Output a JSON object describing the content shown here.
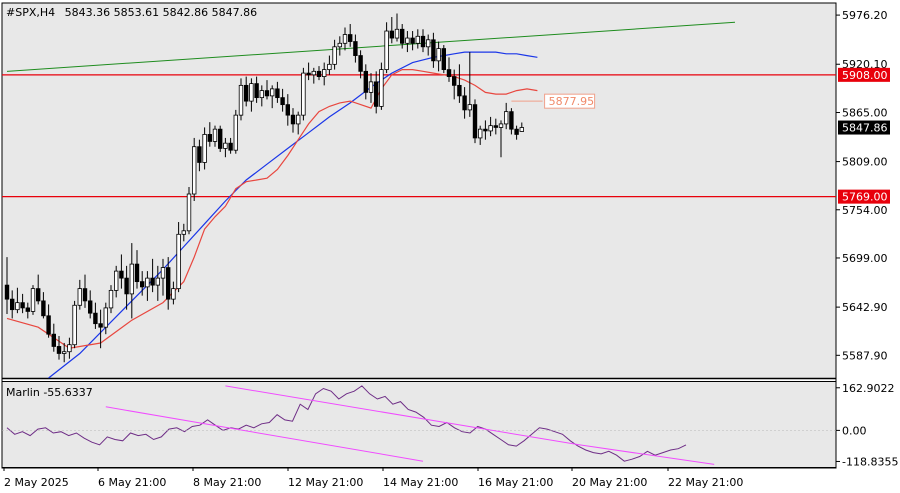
{
  "header": {
    "symbol": "#SPX,H4",
    "ohlc": "5843.36 5853.61 5842.86 5847.86"
  },
  "colors": {
    "background": "#ffffff",
    "plot_bg": "#e8e8e8",
    "candle": "#000000",
    "ma_fast": "#e8473f",
    "ma_slow": "#1a36e8",
    "trend_line": "#1e8c1e",
    "level_line": "#e8000b",
    "oscillator": "#6e2d86",
    "channel": "#f04cff",
    "price_label_bg": "#000000"
  },
  "chart_data": [
    {
      "type": "candlestick",
      "title": "#SPX,H4",
      "ohlc_last": {
        "open": 5843.36,
        "high": 5853.61,
        "low": 5842.86,
        "close": 5847.86
      },
      "y_ticks": [
        5976.2,
        5920.1,
        5865.0,
        5809.0,
        5754.0,
        5699.0,
        5642.9,
        5587.9
      ],
      "ylim": [
        5562,
        5990
      ],
      "x_ticks": [
        "2 May 2025",
        "6 May 21:00",
        "8 May 21:00",
        "12 May 21:00",
        "14 May 21:00",
        "16 May 21:00",
        "20 May 21:00",
        "22 May 21:00"
      ],
      "levels": [
        {
          "value": 5908.0,
          "label": "5908.00"
        },
        {
          "value": 5769.0,
          "label": "5769.00"
        }
      ],
      "target_label": {
        "value": 5877.95,
        "label": "5877.95"
      },
      "current_price": {
        "value": 5847.86,
        "label": "5847.86"
      },
      "candles": [
        [
          5668,
          5700,
          5635,
          5652
        ],
        [
          5652,
          5662,
          5630,
          5640
        ],
        [
          5640,
          5665,
          5636,
          5648
        ],
        [
          5648,
          5658,
          5636,
          5642
        ],
        [
          5642,
          5648,
          5630,
          5638
        ],
        [
          5638,
          5668,
          5634,
          5664
        ],
        [
          5664,
          5680,
          5646,
          5650
        ],
        [
          5650,
          5660,
          5630,
          5633
        ],
        [
          5633,
          5646,
          5608,
          5612
        ],
        [
          5612,
          5624,
          5592,
          5598
        ],
        [
          5598,
          5610,
          5583,
          5590
        ],
        [
          5590,
          5602,
          5580,
          5592
        ],
        [
          5592,
          5608,
          5584,
          5600
        ],
        [
          5600,
          5650,
          5596,
          5645
        ],
        [
          5645,
          5674,
          5640,
          5664
        ],
        [
          5664,
          5680,
          5642,
          5650
        ],
        [
          5650,
          5662,
          5630,
          5636
        ],
        [
          5636,
          5648,
          5618,
          5624
        ],
        [
          5624,
          5640,
          5596,
          5620
        ],
        [
          5620,
          5648,
          5612,
          5642
        ],
        [
          5642,
          5668,
          5636,
          5662
        ],
        [
          5662,
          5690,
          5654,
          5684
        ],
        [
          5684,
          5703,
          5664,
          5676
        ],
        [
          5676,
          5690,
          5640,
          5658
        ],
        [
          5658,
          5716,
          5630,
          5692
        ],
        [
          5692,
          5708,
          5664,
          5672
        ],
        [
          5672,
          5684,
          5656,
          5666
        ],
        [
          5666,
          5684,
          5650,
          5676
        ],
        [
          5676,
          5698,
          5660,
          5668
        ],
        [
          5668,
          5690,
          5650,
          5676
        ],
        [
          5676,
          5698,
          5656,
          5688
        ],
        [
          5688,
          5700,
          5640,
          5652
        ],
        [
          5652,
          5672,
          5646,
          5664
        ],
        [
          5664,
          5740,
          5660,
          5726
        ],
        [
          5726,
          5738,
          5718,
          5730
        ],
        [
          5730,
          5780,
          5726,
          5772
        ],
        [
          5772,
          5836,
          5764,
          5826
        ],
        [
          5826,
          5834,
          5798,
          5808
        ],
        [
          5808,
          5848,
          5800,
          5840
        ],
        [
          5840,
          5854,
          5826,
          5832
        ],
        [
          5832,
          5850,
          5826,
          5846
        ],
        [
          5846,
          5850,
          5820,
          5824
        ],
        [
          5824,
          5836,
          5814,
          5830
        ],
        [
          5830,
          5836,
          5818,
          5822
        ],
        [
          5822,
          5868,
          5818,
          5862
        ],
        [
          5862,
          5904,
          5856,
          5896
        ],
        [
          5896,
          5906,
          5872,
          5878
        ],
        [
          5878,
          5904,
          5866,
          5898
        ],
        [
          5898,
          5906,
          5876,
          5882
        ],
        [
          5882,
          5896,
          5872,
          5890
        ],
        [
          5890,
          5902,
          5880,
          5884
        ],
        [
          5884,
          5896,
          5870,
          5892
        ],
        [
          5892,
          5900,
          5876,
          5882
        ],
        [
          5882,
          5892,
          5866,
          5874
        ],
        [
          5874,
          5886,
          5850,
          5862
        ],
        [
          5862,
          5870,
          5842,
          5852
        ],
        [
          5852,
          5866,
          5840,
          5862
        ],
        [
          5862,
          5916,
          5856,
          5910
        ],
        [
          5910,
          5922,
          5902,
          5908
        ],
        [
          5908,
          5916,
          5898,
          5912
        ],
        [
          5912,
          5918,
          5902,
          5906
        ],
        [
          5906,
          5922,
          5896,
          5914
        ],
        [
          5914,
          5930,
          5908,
          5920
        ],
        [
          5920,
          5948,
          5914,
          5940
        ],
        [
          5940,
          5952,
          5930,
          5944
        ],
        [
          5944,
          5962,
          5936,
          5954
        ],
        [
          5954,
          5966,
          5940,
          5946
        ],
        [
          5946,
          5954,
          5922,
          5930
        ],
        [
          5930,
          5936,
          5904,
          5912
        ],
        [
          5912,
          5920,
          5880,
          5888
        ],
        [
          5888,
          5910,
          5876,
          5900
        ],
        [
          5900,
          5912,
          5864,
          5872
        ],
        [
          5872,
          5922,
          5868,
          5914
        ],
        [
          5914,
          5968,
          5910,
          5958
        ],
        [
          5958,
          5974,
          5944,
          5950
        ],
        [
          5950,
          5978,
          5946,
          5960
        ],
        [
          5960,
          5966,
          5938,
          5944
        ],
        [
          5944,
          5958,
          5934,
          5950
        ],
        [
          5950,
          5958,
          5936,
          5944
        ],
        [
          5944,
          5960,
          5938,
          5952
        ],
        [
          5952,
          5960,
          5934,
          5940
        ],
        [
          5940,
          5954,
          5930,
          5948
        ],
        [
          5948,
          5956,
          5916,
          5924
        ],
        [
          5924,
          5946,
          5912,
          5938
        ],
        [
          5938,
          5942,
          5910,
          5914
        ],
        [
          5914,
          5928,
          5900,
          5906
        ],
        [
          5906,
          5914,
          5880,
          5896
        ],
        [
          5896,
          5920,
          5876,
          5884
        ],
        [
          5884,
          5894,
          5858,
          5868
        ],
        [
          5868,
          5934,
          5860,
          5874
        ],
        [
          5874,
          5880,
          5830,
          5836
        ],
        [
          5836,
          5850,
          5828,
          5846
        ],
        [
          5846,
          5856,
          5834,
          5844
        ],
        [
          5844,
          5860,
          5838,
          5850
        ],
        [
          5850,
          5858,
          5840,
          5848
        ],
        [
          5848,
          5856,
          5814,
          5852
        ],
        [
          5852,
          5876,
          5846,
          5866
        ],
        [
          5866,
          5870,
          5840,
          5846
        ],
        [
          5846,
          5850,
          5834,
          5840
        ],
        [
          5843.36,
          5853.61,
          5842.86,
          5847.86
        ]
      ],
      "ma_fast": [
        [
          0,
          5630
        ],
        [
          6,
          5620
        ],
        [
          12,
          5596
        ],
        [
          18,
          5602
        ],
        [
          24,
          5628
        ],
        [
          30,
          5648
        ],
        [
          34,
          5672
        ],
        [
          36,
          5700
        ],
        [
          38,
          5732
        ],
        [
          40,
          5746
        ],
        [
          42,
          5758
        ],
        [
          44,
          5778
        ],
        [
          46,
          5786
        ],
        [
          48,
          5788
        ],
        [
          50,
          5790
        ],
        [
          52,
          5800
        ],
        [
          54,
          5816
        ],
        [
          56,
          5834
        ],
        [
          58,
          5852
        ],
        [
          60,
          5866
        ],
        [
          62,
          5872
        ],
        [
          64,
          5876
        ],
        [
          66,
          5878
        ],
        [
          68,
          5874
        ],
        [
          70,
          5870
        ],
        [
          72,
          5892
        ],
        [
          74,
          5908
        ],
        [
          76,
          5914
        ],
        [
          78,
          5914
        ],
        [
          80,
          5912
        ],
        [
          82,
          5910
        ],
        [
          84,
          5908
        ],
        [
          86,
          5906
        ],
        [
          88,
          5902
        ],
        [
          90,
          5896
        ],
        [
          92,
          5888
        ],
        [
          94,
          5886
        ],
        [
          96,
          5886
        ],
        [
          98,
          5890
        ],
        [
          100,
          5892
        ],
        [
          102,
          5890
        ]
      ],
      "ma_slow": [
        [
          8,
          5562
        ],
        [
          14,
          5590
        ],
        [
          20,
          5626
        ],
        [
          26,
          5662
        ],
        [
          30,
          5686
        ],
        [
          34,
          5712
        ],
        [
          38,
          5738
        ],
        [
          42,
          5764
        ],
        [
          46,
          5788
        ],
        [
          50,
          5806
        ],
        [
          54,
          5824
        ],
        [
          58,
          5842
        ],
        [
          62,
          5860
        ],
        [
          66,
          5876
        ],
        [
          70,
          5894
        ],
        [
          74,
          5910
        ],
        [
          78,
          5922
        ],
        [
          82,
          5928
        ],
        [
          84,
          5930
        ],
        [
          86,
          5932
        ],
        [
          88,
          5934
        ],
        [
          90,
          5934
        ],
        [
          92,
          5934
        ],
        [
          94,
          5934
        ],
        [
          96,
          5932
        ],
        [
          98,
          5932
        ],
        [
          100,
          5930
        ],
        [
          102,
          5928
        ]
      ],
      "trend_line": [
        [
          0,
          5912
        ],
        [
          140,
          5968
        ]
      ],
      "target_segment": [
        [
          97,
          5877.95
        ],
        [
          103,
          5877.95
        ]
      ]
    },
    {
      "type": "line",
      "title": "Marlin -55.6337",
      "y_ticks": [
        162.9022,
        0.0,
        -118.8355
      ],
      "ylim": [
        -140,
        185
      ],
      "values": [
        10,
        -15,
        -5,
        -20,
        5,
        10,
        -10,
        -5,
        -20,
        -10,
        -30,
        -45,
        -55,
        -25,
        -35,
        -40,
        -10,
        -20,
        -15,
        -35,
        -25,
        5,
        10,
        -5,
        15,
        20,
        40,
        20,
        0,
        10,
        5,
        20,
        10,
        25,
        30,
        60,
        40,
        35,
        100,
        80,
        140,
        160,
        150,
        120,
        140,
        150,
        170,
        140,
        120,
        130,
        100,
        110,
        80,
        70,
        50,
        20,
        15,
        30,
        10,
        -5,
        -10,
        15,
        5,
        -15,
        -35,
        -55,
        -60,
        -40,
        -15,
        10,
        5,
        -5,
        -15,
        -40,
        -60,
        -75,
        -85,
        -90,
        -80,
        -95,
        -118,
        -110,
        -100,
        -80,
        -95,
        -85,
        -75,
        -70,
        -55.6337
      ],
      "channel_upper": [
        [
          42,
          170
        ],
        [
          110,
          -55
        ],
        [
          136,
          -130
        ]
      ],
      "channel_lower": [
        [
          19,
          90
        ],
        [
          80,
          -118
        ]
      ],
      "x_ticks": [
        "2 May 2025",
        "6 May 21:00",
        "8 May 21:00",
        "12 May 21:00",
        "14 May 21:00",
        "16 May 21:00",
        "20 May 21:00",
        "22 May 21:00"
      ]
    }
  ]
}
